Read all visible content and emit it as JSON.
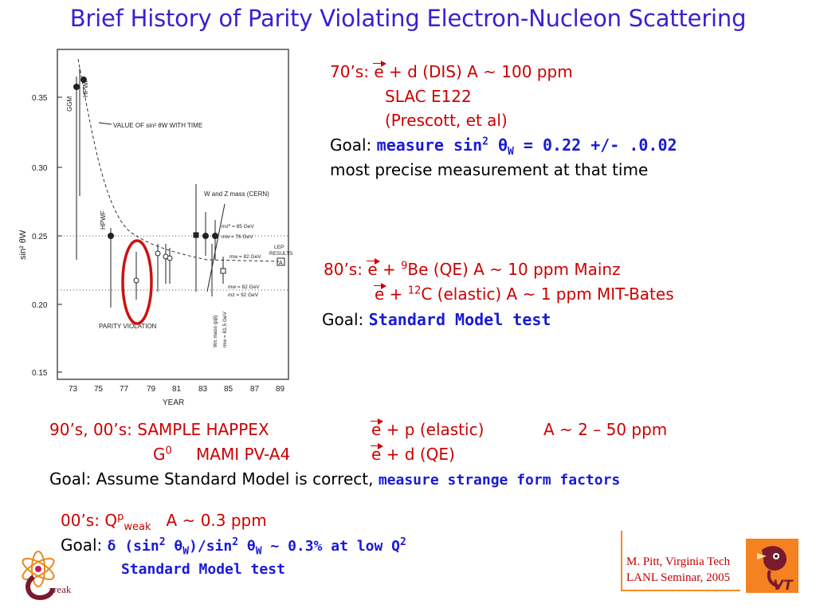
{
  "title": "Brief History of Parity Violating Electron-Nucleon Scattering",
  "chart": {
    "ylabel": "sin² θW",
    "xlabel": "YEAR",
    "yticks": [
      "0.35",
      "0.30",
      "0.25",
      "0.20",
      "0.15"
    ],
    "xticks": [
      "73",
      "75",
      "77",
      "79",
      "81",
      "83",
      "85",
      "87",
      "89"
    ],
    "curve_label": "VALUE OF sin² θW WITH TIME",
    "label_ggm": "GGM",
    "label_hpwf": "HPWF",
    "label_hpwf2": "HPWF",
    "label_parity": "PARITY VIOLATION",
    "label_wz": "W  and  Z  mass (CERN)",
    "label_mz85": "mz⁰ = 85 GeV",
    "label_mw76": "mw = 76 GeV",
    "label_mw82a": "mw = 82 GeV",
    "label_lep1": "LEP",
    "label_lep2": "RESULTS",
    "label_lep_box": "A",
    "label_mw82b": "mw = 82 GeV",
    "label_mz92": "mz = 92 GeV",
    "label_wmass1": "W± mass (pp̄)",
    "label_wmass2": "mw = 81.5 GeV"
  },
  "s70": {
    "prefix": "70’s: ",
    "e": "e",
    "rest": " + d   (DIS)   A ~ 100 ppm",
    "exp1": "SLAC E122",
    "exp2": "(Prescott, et al)",
    "goal_label": "Goal: ",
    "goal_pre": "measure sin",
    "goal_sup": "2",
    "goal_theta": " θ",
    "goal_sub": "W",
    "goal_post": " = 0.22 +/- .0.02",
    "note": "most precise measurement at that time"
  },
  "s80": {
    "prefix": "80’s: ",
    "e1": "e",
    "plus1": " + ",
    "sup1": "9",
    "target1": "Be   (QE)        A ~ 10 ppm   Mainz",
    "e2": "e",
    "plus2": " + ",
    "sup2": "12",
    "target2": "C   (elastic)   A ~   1 ppm   MIT-Bates",
    "goal_label": "Goal: ",
    "goal": "Standard Model test"
  },
  "s90": {
    "prefix": "90’s, 00’s: SAMPLE  HAPPEX",
    "e1": "e",
    "r1": " + p  (elastic)",
    "a1": "A ~ 2 – 50 ppm",
    "g0": "G",
    "g0sup": "0",
    "mami": "MAMI PV-A4",
    "e2": "e",
    "r2": " + d  (QE)",
    "goal_label": "Goal:  Assume Standard Model is correct,",
    "goal": "measure strange form factors"
  },
  "s00": {
    "prefix": "00’s:   Q",
    "qsup": "p",
    "qsub": "weak",
    "amp": "A ~ 0.3 ppm",
    "goal_label": "Goal:  ",
    "goal_a": "δ (sin",
    "goal_b": "2",
    "goal_c": " θ",
    "goal_d": "W",
    "goal_e": ")/sin",
    "goal_f": "2",
    "goal_g": " θ",
    "goal_h": "W",
    "goal_i": " ~ 0.3%  at low Q",
    "goal_j": "2",
    "goal2": "Standard Model test"
  },
  "footer": {
    "line1": "M. Pitt, Virginia Tech",
    "line2": "LANL Seminar, 2005"
  },
  "qweak_logo_text": "weak",
  "vt_logo_text": "VT",
  "colors": {
    "title": "#3a1fd0",
    "red_text": "#cc0000",
    "blue_emphasis": "#1a1ad6",
    "orange_rule": "#f28c28",
    "vt_orange": "#f58220",
    "vt_maroon": "#7a1a2c"
  }
}
